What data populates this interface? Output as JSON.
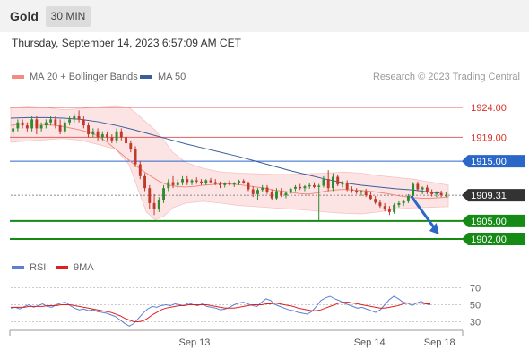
{
  "header": {
    "symbol": "Gold",
    "timeframe": "30 MIN"
  },
  "datetime": "Thursday, September 14, 2023 6:57:09 AM CET",
  "legend": [
    {
      "label": "MA 20 + Bollinger Bands",
      "color": "#f28b82"
    },
    {
      "label": "MA 50",
      "color": "#3a5e9c"
    }
  ],
  "credit": "Research © 2023 Trading Central",
  "rsi_legend": [
    {
      "label": "RSI",
      "color": "#5b7fd6"
    },
    {
      "label": "9MA",
      "color": "#e02020"
    }
  ],
  "colors": {
    "up": "#2e8b2e",
    "down": "#c0392b",
    "support": "#158a15",
    "pivot": "#2b66c9",
    "resistance": "#e06060",
    "arrow": "#2b66c9"
  },
  "chart_data": {
    "type": "candlestick",
    "y_range": [
      1899,
      1927
    ],
    "x_range": [
      0,
      100
    ],
    "x_ticks": [
      {
        "x": 42,
        "label": "Sep 13"
      },
      {
        "x": 82,
        "label": "Sep 14"
      },
      {
        "x": 98,
        "label": "Sep 18"
      }
    ],
    "levels": [
      {
        "value": 1924.0,
        "label": "1924.00",
        "type": "resistance"
      },
      {
        "value": 1919.0,
        "label": "1919.00",
        "type": "resistance"
      },
      {
        "value": 1915.0,
        "label": "1915.00",
        "type": "pivot"
      },
      {
        "value": 1905.0,
        "label": "1905.00",
        "type": "support"
      },
      {
        "value": 1902.0,
        "label": "1902.00",
        "type": "support"
      }
    ],
    "last_price": {
      "value": 1909.31,
      "label": "1909.31"
    },
    "forecast_arrow": {
      "from": [
        91.5,
        1909.2
      ],
      "to": [
        97.5,
        1903.2
      ]
    },
    "ohlc": [
      [
        1920.0,
        1921.0,
        1919.0,
        1920.5
      ],
      [
        1920.5,
        1922.0,
        1920.0,
        1921.5
      ],
      [
        1921.5,
        1922.0,
        1920.5,
        1921.0
      ],
      [
        1921.0,
        1921.5,
        1920.0,
        1920.5
      ],
      [
        1920.5,
        1922.5,
        1920.0,
        1922.0
      ],
      [
        1922.0,
        1922.5,
        1919.5,
        1920.5
      ],
      [
        1920.5,
        1921.5,
        1920.0,
        1921.0
      ],
      [
        1921.0,
        1922.0,
        1920.5,
        1921.5
      ],
      [
        1921.5,
        1922.5,
        1921.0,
        1922.0
      ],
      [
        1922.0,
        1922.5,
        1920.5,
        1921.0
      ],
      [
        1921.0,
        1922.0,
        1919.5,
        1920.0
      ],
      [
        1920.0,
        1922.0,
        1919.5,
        1921.5
      ],
      [
        1921.5,
        1922.5,
        1921.0,
        1922.0
      ],
      [
        1922.0,
        1923.0,
        1921.5,
        1922.5
      ],
      [
        1922.5,
        1923.5,
        1921.5,
        1922.0
      ],
      [
        1922.0,
        1922.5,
        1920.5,
        1921.0
      ],
      [
        1921.0,
        1921.5,
        1919.0,
        1919.5
      ],
      [
        1919.5,
        1920.5,
        1919.0,
        1920.0
      ],
      [
        1920.0,
        1920.5,
        1918.5,
        1919.0
      ],
      [
        1919.0,
        1920.0,
        1918.5,
        1919.5
      ],
      [
        1919.5,
        1920.0,
        1918.5,
        1919.0
      ],
      [
        1919.0,
        1919.5,
        1918.0,
        1918.5
      ],
      [
        1918.5,
        1920.5,
        1918.0,
        1920.0
      ],
      [
        1920.0,
        1920.5,
        1918.5,
        1919.0
      ],
      [
        1919.0,
        1919.5,
        1917.5,
        1918.0
      ],
      [
        1918.0,
        1918.5,
        1916.5,
        1917.0
      ],
      [
        1917.0,
        1917.5,
        1914.0,
        1914.5
      ],
      [
        1914.5,
        1915.0,
        1912.0,
        1912.5
      ],
      [
        1912.5,
        1913.0,
        1910.0,
        1910.5
      ],
      [
        1910.5,
        1911.0,
        1907.0,
        1908.0
      ],
      [
        1908.0,
        1909.5,
        1906.0,
        1907.0
      ],
      [
        1907.0,
        1909.0,
        1906.5,
        1908.5
      ],
      [
        1908.5,
        1911.0,
        1908.0,
        1910.5
      ],
      [
        1910.5,
        1912.0,
        1910.0,
        1911.5
      ],
      [
        1911.5,
        1912.5,
        1910.5,
        1911.0
      ],
      [
        1911.0,
        1912.0,
        1910.5,
        1911.5
      ],
      [
        1911.5,
        1912.5,
        1911.0,
        1912.0
      ],
      [
        1912.0,
        1912.5,
        1911.0,
        1911.5
      ],
      [
        1911.5,
        1912.0,
        1911.0,
        1911.8
      ],
      [
        1911.8,
        1912.3,
        1911.2,
        1911.6
      ],
      [
        1911.6,
        1912.0,
        1911.0,
        1911.4
      ],
      [
        1911.4,
        1912.0,
        1911.0,
        1911.8
      ],
      [
        1911.8,
        1912.2,
        1911.3,
        1911.5
      ],
      [
        1911.5,
        1912.0,
        1911.0,
        1911.2
      ],
      [
        1911.2,
        1911.6,
        1910.5,
        1911.0
      ],
      [
        1911.0,
        1911.5,
        1910.6,
        1911.3
      ],
      [
        1911.3,
        1911.8,
        1910.9,
        1911.1
      ],
      [
        1911.1,
        1911.5,
        1910.7,
        1911.4
      ],
      [
        1911.4,
        1911.9,
        1911.0,
        1911.7
      ],
      [
        1911.7,
        1912.0,
        1911.2,
        1911.3
      ],
      [
        1911.3,
        1911.6,
        1910.0,
        1910.3
      ],
      [
        1910.3,
        1910.8,
        1909.0,
        1909.5
      ],
      [
        1909.5,
        1910.5,
        1908.5,
        1910.2
      ],
      [
        1910.2,
        1911.0,
        1909.8,
        1910.6
      ],
      [
        1910.6,
        1911.0,
        1909.5,
        1909.8
      ],
      [
        1909.8,
        1910.3,
        1908.5,
        1908.8
      ],
      [
        1908.8,
        1910.5,
        1908.5,
        1910.0
      ],
      [
        1910.0,
        1910.5,
        1909.0,
        1909.3
      ],
      [
        1909.3,
        1910.0,
        1908.8,
        1909.7
      ],
      [
        1909.7,
        1910.6,
        1909.5,
        1910.4
      ],
      [
        1910.4,
        1911.0,
        1910.0,
        1910.7
      ],
      [
        1910.7,
        1911.2,
        1910.2,
        1910.5
      ],
      [
        1910.5,
        1911.0,
        1910.0,
        1910.8
      ],
      [
        1910.8,
        1911.3,
        1910.4,
        1911.0
      ],
      [
        1911.0,
        1911.5,
        1910.5,
        1910.7
      ],
      [
        1910.7,
        1911.2,
        1905.0,
        1910.9
      ],
      [
        1910.9,
        1912.5,
        1910.6,
        1912.0
      ],
      [
        1912.0,
        1913.5,
        1910.0,
        1910.5
      ],
      [
        1910.5,
        1913.0,
        1910.0,
        1912.4
      ],
      [
        1912.4,
        1912.8,
        1910.8,
        1911.1
      ],
      [
        1911.1,
        1911.7,
        1910.6,
        1911.4
      ],
      [
        1911.4,
        1911.8,
        1910.0,
        1910.3
      ],
      [
        1910.3,
        1910.8,
        1909.7,
        1910.1
      ],
      [
        1910.1,
        1910.5,
        1909.5,
        1909.8
      ],
      [
        1909.8,
        1910.2,
        1909.2,
        1910.0
      ],
      [
        1910.0,
        1910.4,
        1909.0,
        1909.3
      ],
      [
        1909.3,
        1909.8,
        1908.5,
        1908.7
      ],
      [
        1908.7,
        1909.2,
        1907.8,
        1908.1
      ],
      [
        1908.1,
        1908.5,
        1907.2,
        1907.5
      ],
      [
        1907.5,
        1908.0,
        1906.6,
        1907.0
      ],
      [
        1907.0,
        1907.5,
        1906.0,
        1906.5
      ],
      [
        1906.5,
        1908.0,
        1906.2,
        1907.7
      ],
      [
        1907.7,
        1908.3,
        1907.3,
        1908.0
      ],
      [
        1908.0,
        1908.6,
        1907.5,
        1908.3
      ],
      [
        1908.3,
        1909.5,
        1908.0,
        1909.2
      ],
      [
        1909.2,
        1911.5,
        1909.0,
        1911.2
      ],
      [
        1911.2,
        1911.6,
        1910.0,
        1910.3
      ],
      [
        1910.3,
        1910.8,
        1909.5,
        1910.6
      ],
      [
        1910.6,
        1911.0,
        1909.5,
        1909.8
      ],
      [
        1909.8,
        1910.3,
        1909.1,
        1909.5
      ],
      [
        1909.5,
        1910.0,
        1909.0,
        1909.7
      ],
      [
        1909.7,
        1910.1,
        1909.0,
        1909.3
      ],
      [
        1909.3,
        1909.8,
        1909.0,
        1909.31
      ]
    ],
    "ma20": [
      1921.0,
      1921.2,
      1921.3,
      1921.2,
      1921.1,
      1921.0,
      1920.8,
      1920.5,
      1920.2,
      1919.8,
      1919.2,
      1918.2,
      1917.0,
      1915.8,
      1914.6,
      1913.5,
      1912.5,
      1911.6,
      1911.0,
      1910.8,
      1910.7,
      1910.8,
      1911.0,
      1911.1,
      1911.2,
      1911.2,
      1911.1,
      1910.9,
      1910.7,
      1910.5,
      1910.2,
      1910.0,
      1909.8,
      1909.6,
      1909.5,
      1909.7,
      1910.0,
      1910.2,
      1910.3,
      1910.2,
      1910.1,
      1910.0,
      1909.8,
      1909.6,
      1909.3,
      1909.1,
      1908.9,
      1908.8,
      1908.8,
      1908.9,
      1909.0,
      1909.2,
      1909.3,
      1909.4,
      1909.5,
      1909.5
    ],
    "ma20_x": [
      0,
      2,
      4,
      6,
      8,
      10,
      12,
      14,
      16,
      18,
      20,
      22,
      24,
      26,
      28,
      30,
      32,
      34,
      36,
      38,
      40,
      42,
      44,
      46,
      48,
      50,
      52,
      54,
      56,
      58,
      60,
      62,
      64,
      66,
      68,
      70,
      72,
      74,
      76,
      78,
      80,
      82,
      84,
      86,
      88,
      90,
      92,
      94,
      96,
      98,
      100,
      100,
      100,
      100,
      100,
      100
    ],
    "ma50": [
      1922.2,
      1922.3,
      1922.3,
      1922.2,
      1922.0,
      1921.6,
      1921.0,
      1920.3,
      1919.5,
      1918.7,
      1917.9,
      1917.2,
      1916.5,
      1915.8,
      1915.0,
      1914.2,
      1913.4,
      1912.7,
      1912.0,
      1911.4,
      1911.0,
      1910.7,
      1910.4,
      1910.2,
      1910.0,
      1909.8,
      1909.7
    ],
    "ma50_x": [
      0,
      4,
      8,
      12,
      16,
      20,
      24,
      28,
      32,
      36,
      40,
      44,
      48,
      52,
      56,
      60,
      64,
      68,
      72,
      76,
      80,
      84,
      88,
      92,
      94,
      96,
      98
    ],
    "bb_upper": [
      1924.0,
      1924.2,
      1924.0,
      1923.6,
      1923.8,
      1924.1,
      1924.3,
      1924.0,
      1922.8,
      1921.5,
      1920.2,
      1918.5,
      1916.5,
      1914.8,
      1913.8,
      1913.2,
      1913.0,
      1912.9,
      1912.8,
      1912.8,
      1912.9,
      1913.0,
      1913.2,
      1913.0,
      1912.6,
      1912.3,
      1912.0,
      1911.5,
      1911.0
    ],
    "bb_lower": [
      1918.2,
      1918.4,
      1918.6,
      1918.8,
      1918.5,
      1917.8,
      1917.0,
      1914.5,
      1910.5,
      1906.5,
      1905.2,
      1905.8,
      1907.2,
      1908.0,
      1908.3,
      1908.0,
      1907.6,
      1907.4,
      1907.2,
      1907.0,
      1906.8,
      1906.5,
      1906.3,
      1906.2,
      1906.5,
      1907.0,
      1907.2,
      1907.3,
      1907.4
    ],
    "bb_x": [
      0,
      4,
      8,
      12,
      16,
      20,
      24,
      27,
      29,
      31,
      33,
      35,
      37,
      40,
      44,
      48,
      52,
      56,
      60,
      64,
      68,
      72,
      76,
      80,
      84,
      88,
      92,
      96,
      100
    ],
    "rsi": {
      "y_ticks": [
        70,
        50,
        30
      ],
      "y_range": [
        20,
        80
      ],
      "values": [
        46,
        47,
        45,
        48,
        50,
        47,
        49,
        51,
        48,
        47,
        50,
        52,
        53,
        49,
        46,
        44,
        45,
        43,
        44,
        42,
        41,
        40,
        38,
        36,
        32,
        28,
        25,
        28,
        34,
        40,
        45,
        48,
        47,
        49,
        50,
        49,
        51,
        50,
        49,
        52,
        50,
        49,
        51,
        48,
        47,
        46,
        44,
        45,
        47,
        50,
        52,
        53,
        51,
        49,
        48,
        53,
        57,
        55,
        50,
        48,
        46,
        44,
        43,
        41,
        40,
        39,
        42,
        48,
        55,
        58,
        60,
        57,
        55,
        52,
        50,
        48,
        46,
        47,
        45,
        43,
        41,
        44,
        50,
        56,
        60,
        57,
        53,
        52,
        49,
        52,
        54,
        51,
        50
      ],
      "ma9": [
        47,
        47,
        47,
        47,
        48,
        48,
        48,
        48,
        49,
        49,
        49,
        50,
        50,
        50,
        49,
        48,
        47,
        46,
        45,
        44,
        43,
        42,
        41,
        39,
        37,
        34,
        32,
        30,
        30,
        31,
        34,
        38,
        41,
        44,
        46,
        47,
        48,
        49,
        49,
        50,
        50,
        50,
        50,
        50,
        49,
        48,
        47,
        46,
        46,
        46,
        47,
        48,
        49,
        50,
        50,
        50,
        51,
        51,
        52,
        51,
        50,
        49,
        48,
        46,
        45,
        44,
        43,
        43,
        44,
        46,
        48,
        50,
        52,
        53,
        53,
        52,
        51,
        50,
        49,
        48,
        47,
        46,
        46,
        47,
        48,
        49,
        51,
        52,
        52,
        52,
        52,
        51,
        51
      ]
    }
  }
}
